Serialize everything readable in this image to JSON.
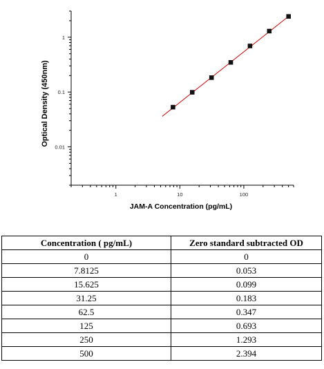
{
  "chart_data": {
    "type": "scatter",
    "xlabel": "JAM-A Concentration (pg/mL)",
    "ylabel": "Optical Density (450nm)",
    "x_scale": "log",
    "y_scale": "log",
    "xlim": [
      0.2,
      600
    ],
    "ylim": [
      0.002,
      3
    ],
    "x_ticks": [
      1,
      10,
      100
    ],
    "x_tick_labels": [
      "1",
      "10",
      "100"
    ],
    "y_ticks": [
      0.01,
      0.1,
      1
    ],
    "y_tick_labels": [
      "0.01",
      "0.1",
      "1"
    ],
    "grid": false,
    "points": {
      "x": [
        7.8125,
        15.625,
        31.25,
        62.5,
        125,
        250,
        500
      ],
      "y": [
        0.053,
        0.099,
        0.183,
        0.347,
        0.693,
        1.293,
        2.394
      ]
    },
    "fit_line": {
      "x": [
        5.3,
        500
      ],
      "y": [
        0.036,
        2.394
      ],
      "color": "#cc0000"
    },
    "marker_color": "#111111"
  },
  "table": {
    "headers": [
      "Concentration ( pg/mL)",
      "Zero standard subtracted OD"
    ],
    "rows": [
      [
        "0",
        "0"
      ],
      [
        "7.8125",
        "0.053"
      ],
      [
        "15.625",
        "0.099"
      ],
      [
        "31.25",
        "0.183"
      ],
      [
        "62.5",
        "0.347"
      ],
      [
        "125",
        "0.693"
      ],
      [
        "250",
        "1.293"
      ],
      [
        "500",
        "2.394"
      ]
    ]
  }
}
